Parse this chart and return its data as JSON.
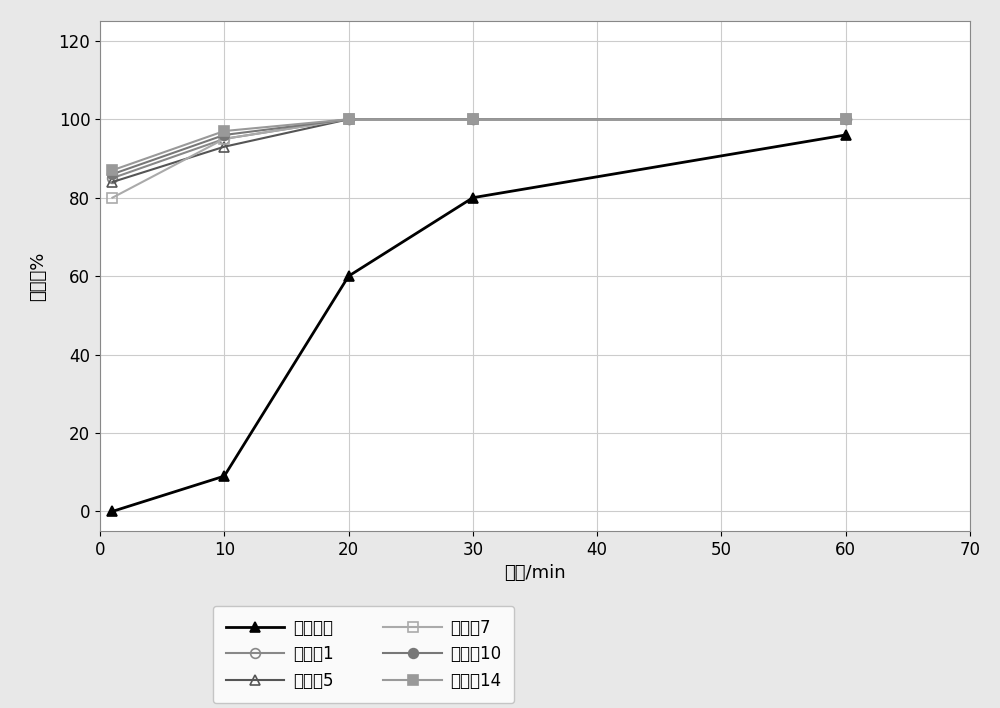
{
  "series": [
    {
      "label": "参比制剂",
      "x": [
        1,
        10,
        20,
        30,
        60
      ],
      "y": [
        0,
        9,
        60,
        80,
        96
      ],
      "color": "#000000",
      "marker": "^",
      "markersize": 7,
      "linewidth": 2.0,
      "fillstyle": "full",
      "zorder": 5
    },
    {
      "label": "实施例1",
      "x": [
        1,
        10,
        20,
        30,
        60
      ],
      "y": [
        85,
        95,
        100,
        100,
        100
      ],
      "color": "#888888",
      "marker": "o",
      "markersize": 7,
      "linewidth": 1.5,
      "fillstyle": "none",
      "zorder": 4
    },
    {
      "label": "实施例5",
      "x": [
        1,
        10,
        20,
        30,
        60
      ],
      "y": [
        84,
        93,
        100,
        100,
        100
      ],
      "color": "#555555",
      "marker": "^",
      "markersize": 7,
      "linewidth": 1.5,
      "fillstyle": "none",
      "zorder": 4
    },
    {
      "label": "实施例7",
      "x": [
        1,
        10,
        20,
        30,
        60
      ],
      "y": [
        80,
        95,
        100,
        100,
        100
      ],
      "color": "#aaaaaa",
      "marker": "s",
      "markersize": 7,
      "linewidth": 1.5,
      "fillstyle": "none",
      "zorder": 4
    },
    {
      "label": "实施例10",
      "x": [
        1,
        10,
        20,
        30,
        60
      ],
      "y": [
        86,
        96,
        100,
        100,
        100
      ],
      "color": "#777777",
      "marker": "o",
      "markersize": 7,
      "linewidth": 1.5,
      "fillstyle": "full",
      "zorder": 4
    },
    {
      "label": "实施例14",
      "x": [
        1,
        10,
        20,
        30,
        60
      ],
      "y": [
        87,
        97,
        100,
        100,
        100
      ],
      "color": "#999999",
      "marker": "s",
      "markersize": 7,
      "linewidth": 1.5,
      "fillstyle": "full",
      "zorder": 4
    }
  ],
  "xlabel": "时间/min",
  "ylabel": "溶出度%",
  "xlim": [
    0,
    70
  ],
  "ylim": [
    -5,
    125
  ],
  "xticks": [
    0,
    10,
    20,
    30,
    40,
    50,
    60,
    70
  ],
  "yticks": [
    0,
    20,
    40,
    60,
    80,
    100,
    120
  ],
  "grid": true,
  "background_color": "#e8e8e8",
  "plot_bg_color": "#ffffff",
  "legend_ncol": 2,
  "legend_fontsize": 12,
  "axis_fontsize": 13,
  "tick_fontsize": 12
}
